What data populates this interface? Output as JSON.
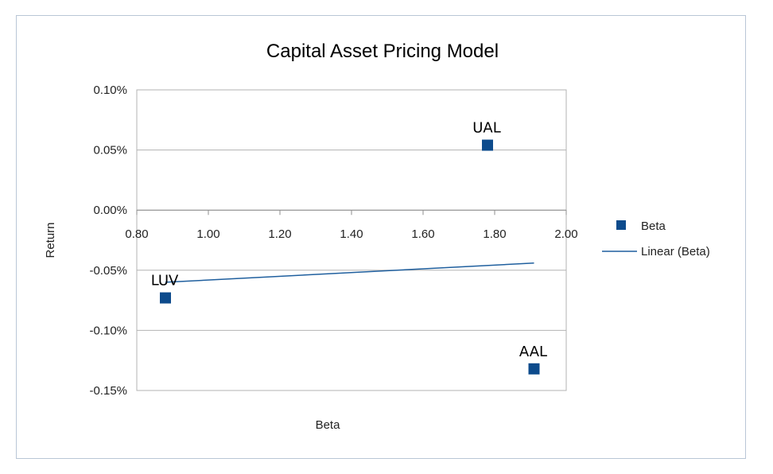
{
  "chart_data": {
    "type": "scatter",
    "title": "Capital Asset Pricing Model",
    "xlabel": "Beta",
    "ylabel": "Return",
    "xlim": [
      0.8,
      2.0
    ],
    "ylim": [
      -0.0015,
      0.001
    ],
    "x_ticks": [
      0.8,
      1.0,
      1.2,
      1.4,
      1.6,
      1.8,
      2.0
    ],
    "x_tick_labels": [
      "0.80",
      "1.00",
      "1.20",
      "1.40",
      "1.60",
      "1.80",
      "2.00"
    ],
    "y_ticks": [
      0.001,
      0.0005,
      0.0,
      -0.0005,
      -0.001,
      -0.0015
    ],
    "y_tick_labels": [
      "0.10%",
      "0.05%",
      "0.00%",
      "-0.05%",
      "-0.10%",
      "-0.15%"
    ],
    "grid": "horizontal",
    "legend_position": "right",
    "series": [
      {
        "name": "Beta",
        "marker": "square",
        "color": "#0d4b8c",
        "points": [
          {
            "label": "LUV",
            "x": 0.88,
            "y": -0.00073
          },
          {
            "label": "UAL",
            "x": 1.78,
            "y": 0.00054
          },
          {
            "label": "AAL",
            "x": 1.91,
            "y": -0.00132
          }
        ]
      }
    ],
    "trendline": {
      "name": "Linear (Beta)",
      "color": "#1f5f9e",
      "x": [
        0.88,
        1.91
      ],
      "y": [
        -0.0006,
        -0.00044
      ]
    }
  }
}
